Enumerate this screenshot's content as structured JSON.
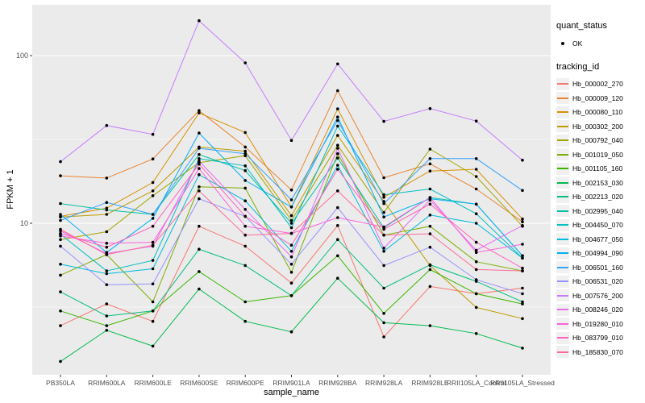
{
  "figure": {
    "background": "#FFFFFF",
    "panel_background": "#EBEBEB",
    "grid_color": "#FFFFFF",
    "tick_label_color": "#4D4D4D",
    "point_color": "#000000"
  },
  "legend": {
    "quant_status": {
      "title": "quant_status",
      "items": [
        {
          "label": "OK",
          "symbol": "point",
          "color": "#000000"
        }
      ]
    },
    "tracking_id": {
      "title": "tracking_id"
    }
  },
  "chart_data": {
    "type": "line",
    "xlabel": "sample_name",
    "ylabel": "FPKM + 1",
    "y_scale": "log10",
    "y_ticks": [
      {
        "value": 10,
        "label": "10"
      },
      {
        "value": 100,
        "label": "100"
      }
    ],
    "y_minor_ticks": [
      3.1623,
      31.623
    ],
    "ylim": [
      1.25,
      200
    ],
    "grid": true,
    "legend_position": "right",
    "point_shape": "filled-circle",
    "categories": [
      "PB350LA",
      "RRIM600LA",
      "RRIM600LE",
      "RRIM600SE",
      "RRIM600PE",
      "RRIM901LA",
      "RRIM928BA",
      "RRIM928LA",
      "RRIM928LE",
      "RRII105LA_Control",
      "RRII105LA_Stressed"
    ],
    "series": [
      {
        "name": "Hb_000002_270",
        "color": "#F8766D",
        "values": [
          2.45,
          3.3,
          2.6,
          9.6,
          7.3,
          4.4,
          9.7,
          2.1,
          4.2,
          3.8,
          4.1
        ]
      },
      {
        "name": "Hb_000009_120",
        "color": "#EA8331",
        "values": [
          19.2,
          18.6,
          24.2,
          47.0,
          28.5,
          15.8,
          61.8,
          18.7,
          22.6,
          16.0,
          10.2
        ]
      },
      {
        "name": "Hb_000080_110",
        "color": "#D89000",
        "values": [
          11.0,
          12.3,
          17.5,
          45.5,
          34.8,
          12.5,
          48.1,
          14.3,
          20.5,
          21.0,
          10.6
        ]
      },
      {
        "name": "Hb_000302_200",
        "color": "#C09B00",
        "values": [
          10.9,
          11.3,
          15.6,
          28.5,
          26.9,
          11.1,
          33.4,
          13.5,
          5.6,
          3.15,
          2.7
        ]
      },
      {
        "name": "Hb_000792_040",
        "color": "#A3A500",
        "values": [
          8.0,
          8.9,
          14.6,
          23.0,
          25.3,
          10.4,
          29.2,
          11.6,
          27.7,
          19.0,
          9.6
        ]
      },
      {
        "name": "Hb_001019_050",
        "color": "#7CAE00",
        "values": [
          4.9,
          6.5,
          3.4,
          16.5,
          16.2,
          5.1,
          26.0,
          8.5,
          9.6,
          5.9,
          5.2
        ]
      },
      {
        "name": "Hb_001105_160",
        "color": "#39B600",
        "values": [
          3.0,
          2.45,
          3.0,
          5.15,
          3.4,
          3.7,
          6.4,
          2.9,
          5.3,
          3.8,
          3.3
        ]
      },
      {
        "name": "Hb_002153_030",
        "color": "#00BB4E",
        "values": [
          1.5,
          2.3,
          1.85,
          4.05,
          2.6,
          2.25,
          4.7,
          2.55,
          2.45,
          2.2,
          1.8
        ]
      },
      {
        "name": "Hb_002213_020",
        "color": "#00BF7D",
        "values": [
          3.9,
          2.8,
          3.0,
          7.0,
          5.6,
          3.7,
          8.0,
          4.1,
          5.65,
          4.5,
          3.4
        ]
      },
      {
        "name": "Hb_002995_040",
        "color": "#00C1A3",
        "values": [
          13.1,
          12.0,
          11.3,
          25.7,
          20.6,
          10.0,
          24.5,
          9.4,
          14.25,
          13.0,
          6.4
        ]
      },
      {
        "name": "Hb_004450_070",
        "color": "#00BFC4",
        "values": [
          8.6,
          5.2,
          6.0,
          24.3,
          22.0,
          9.4,
          38.0,
          14.8,
          16.0,
          11.4,
          6.2
        ]
      },
      {
        "name": "Hb_004677_050",
        "color": "#00BAE0",
        "values": [
          5.7,
          5.0,
          5.35,
          19.5,
          13.6,
          6.8,
          22.2,
          6.8,
          11.2,
          10.0,
          6.2
        ]
      },
      {
        "name": "Hb_004994_090",
        "color": "#00B0F6",
        "values": [
          11.3,
          6.7,
          10.7,
          34.5,
          18.0,
          12.5,
          43.0,
          10.9,
          14.0,
          13.0,
          6.4
        ]
      },
      {
        "name": "Hb_006501_160",
        "color": "#35A2FF",
        "values": [
          10.4,
          13.3,
          11.3,
          28.0,
          26.0,
          13.8,
          41.0,
          13.1,
          24.3,
          24.3,
          15.7
        ]
      },
      {
        "name": "Hb_006531_020",
        "color": "#9590FF",
        "values": [
          7.3,
          4.3,
          4.35,
          14.0,
          11.0,
          5.7,
          12.4,
          5.6,
          7.2,
          4.6,
          3.8
        ]
      },
      {
        "name": "Hb_007576_200",
        "color": "#C77CFF",
        "values": [
          23.3,
          38.3,
          33.9,
          161.5,
          90.5,
          31.2,
          89.2,
          40.5,
          48.3,
          40.7,
          23.8
        ]
      },
      {
        "name": "Hb_008246_020",
        "color": "#E76BF3",
        "values": [
          9.0,
          6.6,
          7.3,
          23.5,
          12.1,
          6.3,
          28.0,
          7.1,
          13.75,
          6.9,
          9.7
        ]
      },
      {
        "name": "Hb_019280_010",
        "color": "#FA62DB",
        "values": [
          8.4,
          7.6,
          7.7,
          21.2,
          9.6,
          8.7,
          10.8,
          9.5,
          14.25,
          6.7,
          7.5
        ]
      },
      {
        "name": "Hb_083799_010",
        "color": "#FF62BC",
        "values": [
          8.7,
          7.2,
          9.6,
          22.5,
          11.0,
          7.4,
          21.0,
          9.2,
          13.0,
          7.7,
          5.4
        ]
      },
      {
        "name": "Hb_185830_070",
        "color": "#FF6A98",
        "values": [
          9.2,
          6.5,
          7.4,
          15.6,
          8.5,
          8.7,
          15.6,
          8.5,
          8.65,
          5.3,
          5.2
        ]
      }
    ]
  }
}
